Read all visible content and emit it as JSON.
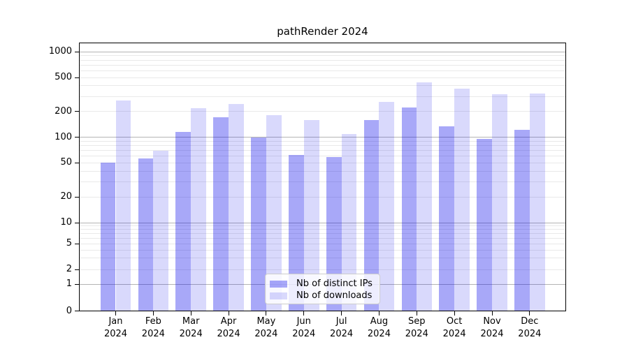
{
  "title": "pathRender 2024",
  "chart_data": {
    "type": "bar",
    "title": "pathRender 2024",
    "categories": [
      "Jan 2024",
      "Feb 2024",
      "Mar 2024",
      "Apr 2024",
      "May 2024",
      "Jun 2024",
      "Jul 2024",
      "Aug 2024",
      "Sep 2024",
      "Oct 2024",
      "Nov 2024",
      "Dec 2024"
    ],
    "series": [
      {
        "name": "Nb of distinct IPs",
        "values": [
          50,
          57,
          115,
          170,
          100,
          62,
          59,
          160,
          225,
          135,
          95,
          122
        ]
      },
      {
        "name": "Nb of downloads",
        "values": [
          270,
          70,
          218,
          247,
          182,
          160,
          110,
          260,
          437,
          370,
          320,
          328
        ]
      }
    ],
    "xlabel": "",
    "ylabel": "",
    "yscale": "log-like (compressed below 10, linear 0-1)",
    "ylim": [
      0,
      1300
    ],
    "ytick_labels": [
      0,
      1,
      2,
      5,
      10,
      20,
      50,
      100,
      200,
      500,
      1000
    ],
    "y_major_gridlines": [
      1,
      10,
      100,
      1000
    ],
    "y_minor_gridlines": [
      2,
      3,
      4,
      5,
      6,
      7,
      8,
      9,
      20,
      30,
      40,
      50,
      60,
      70,
      80,
      90,
      200,
      300,
      400,
      500,
      600,
      700,
      800,
      900
    ],
    "grid": "horizontal only",
    "legend_position": "lower center"
  },
  "colors": {
    "bar_distinct_ips": "rgba(0,0,235,0.34)",
    "bar_downloads": "rgba(0,0,235,0.15)",
    "grid_major": "#b4b4b4",
    "grid_minor": "#e9e9e9",
    "axis": "#000000",
    "text": "#000000",
    "legend_border": "#cccccc",
    "legend_background": "rgba(255,255,255,0.8)",
    "background": "#ffffff"
  }
}
